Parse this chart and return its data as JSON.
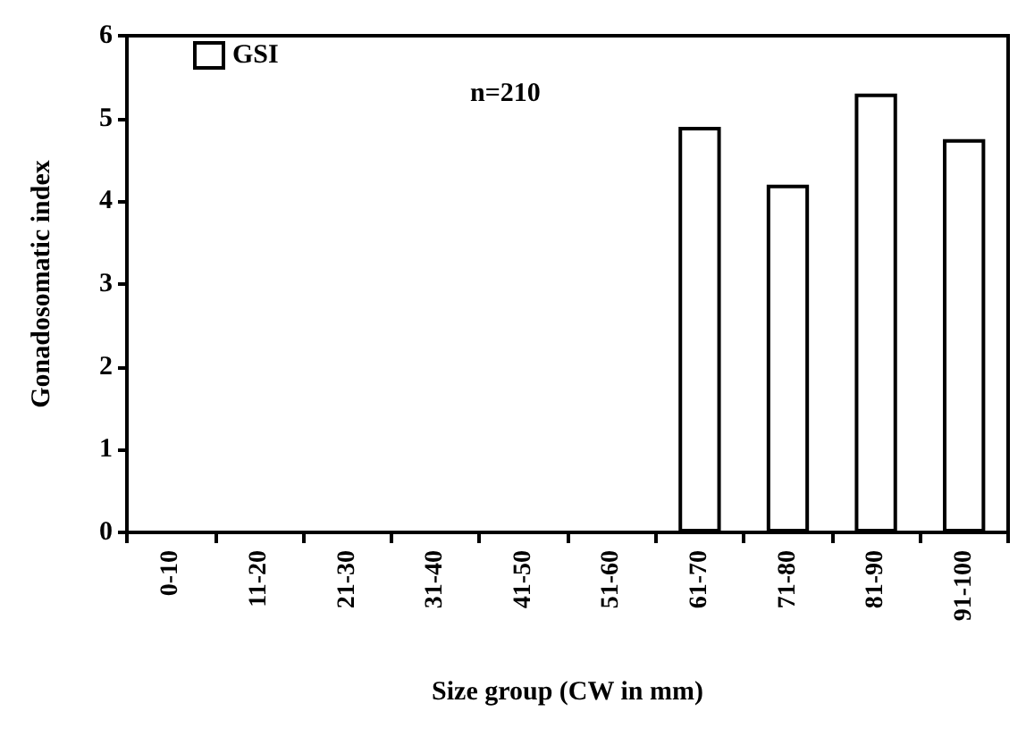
{
  "chart_data": {
    "type": "bar",
    "xlabel": "Size group (CW in mm)",
    "ylabel": "Gonadosomatic index",
    "categories": [
      "0-10",
      "11-20",
      "21-30",
      "31-40",
      "41-50",
      "51-60",
      "61-70",
      "71-80",
      "81-90",
      "91-100"
    ],
    "series": [
      {
        "name": "GSI",
        "color": "#ffffff",
        "values": [
          null,
          null,
          null,
          null,
          null,
          null,
          4.9,
          4.2,
          5.3,
          4.75
        ]
      }
    ],
    "ylim": [
      0,
      6
    ],
    "yticks": [
      0,
      1,
      2,
      3,
      4,
      5,
      6
    ],
    "grid": false,
    "legend": "top left",
    "annotations": [
      "n=210"
    ]
  }
}
